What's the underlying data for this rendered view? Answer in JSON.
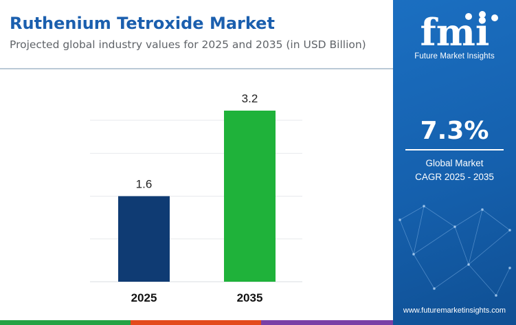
{
  "header": {
    "title": "Ruthenium Tetroxide Market",
    "subtitle": "Projected global industry values for 2025 and 2035 (in USD Billion)"
  },
  "chart_data": {
    "type": "bar",
    "categories": [
      "2025",
      "2035"
    ],
    "values": [
      1.6,
      3.2
    ],
    "data_labels": [
      "1.6",
      "3.2"
    ],
    "bar_colors": [
      "#0f3b73",
      "#1fb23a"
    ],
    "unit": "USD Billion",
    "ylim": [
      0,
      3.2
    ],
    "grid": true,
    "legend": "none"
  },
  "sidebar": {
    "brand_logo": "fmi",
    "brand_name": "Future Market Insights",
    "cagr_value": "7.3%",
    "cagr_line1": "Global Market",
    "cagr_line2": "CAGR 2025 - 2035",
    "website": "www.futuremarketinsights.com"
  },
  "colors": {
    "title": "#1b5fae",
    "sidebar_bg": "#1560ad",
    "bottom_strip": [
      "#25a244",
      "#2468b7",
      "#e34a1c",
      "#7a3fa6"
    ]
  }
}
